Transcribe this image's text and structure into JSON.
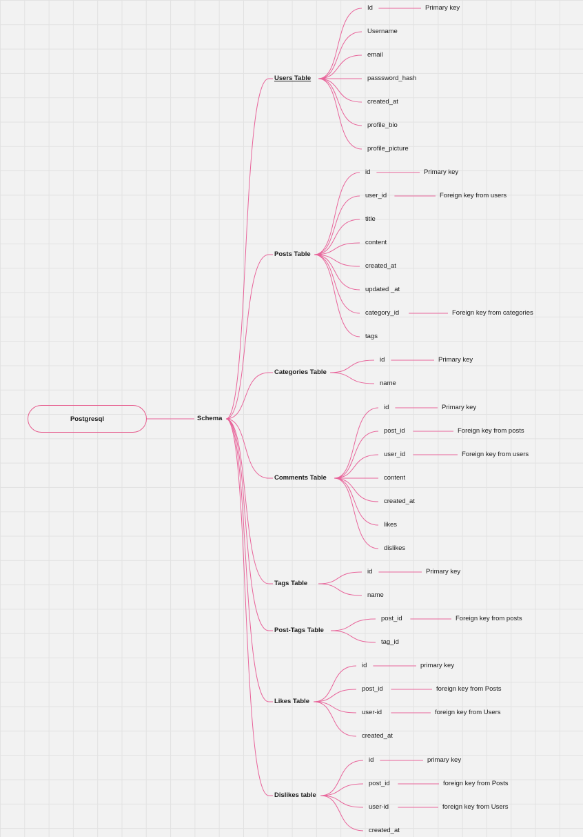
{
  "diagram": {
    "line_color": "#e8649a",
    "root": {
      "label": "Postgresql"
    },
    "schema": {
      "label": "Schema"
    },
    "tables": [
      {
        "name": "Users Table",
        "underlined": true,
        "fields": [
          {
            "name": "Id",
            "note": "Primary key"
          },
          {
            "name": "Username"
          },
          {
            "name": "email"
          },
          {
            "name": "passsword_hash"
          },
          {
            "name": "created_at"
          },
          {
            "name": "profile_bio"
          },
          {
            "name": "profile_picture"
          }
        ]
      },
      {
        "name": "Posts Table",
        "fields": [
          {
            "name": "id",
            "note": "Primary key"
          },
          {
            "name": "user_id",
            "note": "Foreign key from users"
          },
          {
            "name": "title"
          },
          {
            "name": "content"
          },
          {
            "name": "created_at"
          },
          {
            "name": "updated _at"
          },
          {
            "name": "category_id",
            "note": "Foreign key from categories"
          },
          {
            "name": "tags"
          }
        ]
      },
      {
        "name": "Categories Table",
        "fields": [
          {
            "name": "id",
            "note": "Primary key"
          },
          {
            "name": "name"
          }
        ]
      },
      {
        "name": "Comments Table",
        "fields": [
          {
            "name": "id",
            "note": "Primary key"
          },
          {
            "name": "post_id",
            "note": "Foreign key from posts"
          },
          {
            "name": "user_id",
            "note": "Foreign key from users"
          },
          {
            "name": "content"
          },
          {
            "name": "created_at"
          },
          {
            "name": "likes"
          },
          {
            "name": "dislikes"
          }
        ]
      },
      {
        "name": "Tags Table",
        "fields": [
          {
            "name": "id",
            "note": "Primary key"
          },
          {
            "name": "name"
          }
        ]
      },
      {
        "name": "Post-Tags Table",
        "fields": [
          {
            "name": "post_id",
            "note": "Foreign key from posts"
          },
          {
            "name": "tag_id"
          }
        ]
      },
      {
        "name": "Likes Table",
        "fields": [
          {
            "name": "id",
            "note": "primary key"
          },
          {
            "name": "post_id",
            "note": "foreign key from Posts"
          },
          {
            "name": "user-id",
            "note": "foreign key from Users"
          },
          {
            "name": "created_at"
          }
        ]
      },
      {
        "name": "Dislikes table",
        "fields": [
          {
            "name": "id",
            "note": "primary key"
          },
          {
            "name": "post_id",
            "note": "foreign key from Posts"
          },
          {
            "name": "user-id",
            "note": "foreign key from Users"
          },
          {
            "name": "created_at"
          }
        ]
      }
    ]
  }
}
